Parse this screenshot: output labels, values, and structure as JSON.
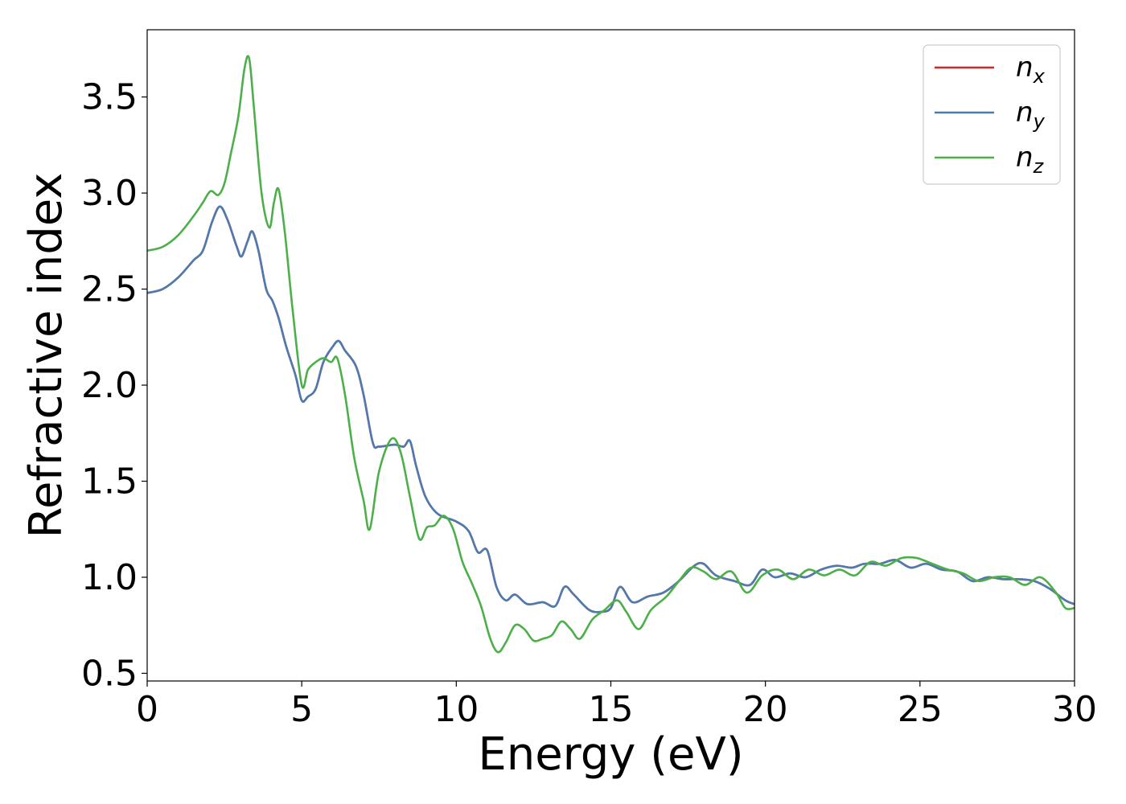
{
  "chart_data": {
    "type": "line",
    "xlabel": "Energy (eV)",
    "ylabel": "Refractive index",
    "xlim": [
      0,
      30
    ],
    "ylim": [
      0.46,
      3.85
    ],
    "xticks": [
      0,
      5,
      10,
      15,
      20,
      25,
      30
    ],
    "xtick_labels": [
      "0",
      "5",
      "10",
      "15",
      "20",
      "25",
      "30"
    ],
    "yticks": [
      0.5,
      1.0,
      1.5,
      2.0,
      2.5,
      3.0,
      3.5
    ],
    "ytick_labels": [
      "0.5",
      "1.0",
      "1.5",
      "2.0",
      "2.5",
      "3.0",
      "3.5"
    ],
    "grid": false,
    "legend_position": "top-right",
    "series": [
      {
        "name": "n",
        "subscript": "x",
        "color": "#d62728",
        "x": [
          0,
          0.5,
          1.0,
          1.5,
          1.8,
          2.1,
          2.35,
          2.6,
          2.9,
          3.05,
          3.25,
          3.4,
          3.6,
          3.85,
          4.05,
          4.25,
          4.5,
          4.8,
          5.0,
          5.2,
          5.45,
          5.7,
          6.0,
          6.2,
          6.4,
          6.75,
          7.0,
          7.3,
          7.5,
          8.0,
          8.3,
          8.5,
          8.7,
          9.0,
          9.4,
          10.0,
          10.4,
          10.7,
          11.0,
          11.3,
          11.6,
          11.9,
          12.3,
          12.8,
          13.2,
          13.5,
          13.8,
          14.3,
          14.7,
          15.0,
          15.3,
          15.7,
          16.2,
          16.7,
          17.2,
          17.7,
          18.0,
          18.4,
          19.0,
          19.5,
          19.9,
          20.3,
          20.8,
          21.3,
          21.8,
          22.3,
          22.8,
          23.2,
          23.7,
          24.2,
          24.7,
          25.2,
          25.7,
          26.2,
          26.7,
          27.2,
          27.7,
          28.2,
          28.7,
          29.2,
          29.7,
          30.0
        ],
        "y": [
          2.48,
          2.5,
          2.56,
          2.65,
          2.7,
          2.85,
          2.93,
          2.86,
          2.72,
          2.67,
          2.75,
          2.8,
          2.7,
          2.5,
          2.44,
          2.35,
          2.2,
          2.05,
          1.92,
          1.94,
          1.98,
          2.12,
          2.2,
          2.23,
          2.18,
          2.1,
          1.95,
          1.7,
          1.68,
          1.69,
          1.68,
          1.71,
          1.58,
          1.42,
          1.33,
          1.29,
          1.24,
          1.13,
          1.14,
          0.95,
          0.88,
          0.91,
          0.86,
          0.87,
          0.85,
          0.95,
          0.91,
          0.83,
          0.82,
          0.84,
          0.95,
          0.87,
          0.9,
          0.92,
          0.98,
          1.06,
          1.07,
          1.01,
          0.98,
          0.96,
          1.04,
          1.0,
          1.02,
          1.0,
          1.04,
          1.06,
          1.05,
          1.07,
          1.07,
          1.09,
          1.05,
          1.07,
          1.04,
          1.03,
          0.98,
          1.0,
          0.99,
          0.99,
          0.98,
          0.94,
          0.88,
          0.86
        ]
      },
      {
        "name": "n",
        "subscript": "y",
        "color": "#4c7bb0",
        "x": [
          0,
          0.5,
          1.0,
          1.5,
          1.8,
          2.1,
          2.35,
          2.6,
          2.9,
          3.05,
          3.25,
          3.4,
          3.6,
          3.85,
          4.05,
          4.25,
          4.5,
          4.8,
          5.0,
          5.2,
          5.45,
          5.7,
          6.0,
          6.2,
          6.4,
          6.75,
          7.0,
          7.3,
          7.5,
          8.0,
          8.3,
          8.5,
          8.7,
          9.0,
          9.4,
          10.0,
          10.4,
          10.7,
          11.0,
          11.3,
          11.6,
          11.9,
          12.3,
          12.8,
          13.2,
          13.5,
          13.8,
          14.3,
          14.7,
          15.0,
          15.3,
          15.7,
          16.2,
          16.7,
          17.2,
          17.7,
          18.0,
          18.4,
          19.0,
          19.5,
          19.9,
          20.3,
          20.8,
          21.3,
          21.8,
          22.3,
          22.8,
          23.2,
          23.7,
          24.2,
          24.7,
          25.2,
          25.7,
          26.2,
          26.7,
          27.2,
          27.7,
          28.2,
          28.7,
          29.2,
          29.7,
          30.0
        ],
        "y": [
          2.48,
          2.5,
          2.56,
          2.65,
          2.7,
          2.85,
          2.93,
          2.86,
          2.72,
          2.67,
          2.75,
          2.8,
          2.7,
          2.5,
          2.44,
          2.35,
          2.2,
          2.05,
          1.92,
          1.94,
          1.98,
          2.12,
          2.2,
          2.23,
          2.18,
          2.1,
          1.95,
          1.7,
          1.68,
          1.69,
          1.68,
          1.71,
          1.58,
          1.42,
          1.33,
          1.29,
          1.24,
          1.13,
          1.14,
          0.95,
          0.88,
          0.91,
          0.86,
          0.87,
          0.85,
          0.95,
          0.91,
          0.83,
          0.82,
          0.84,
          0.95,
          0.87,
          0.9,
          0.92,
          0.98,
          1.06,
          1.07,
          1.01,
          0.98,
          0.96,
          1.04,
          1.0,
          1.02,
          1.0,
          1.04,
          1.06,
          1.05,
          1.07,
          1.07,
          1.09,
          1.05,
          1.07,
          1.04,
          1.03,
          0.98,
          1.0,
          0.99,
          0.99,
          0.98,
          0.94,
          0.88,
          0.86
        ]
      },
      {
        "name": "n",
        "subscript": "z",
        "color": "#4daf4a",
        "x": [
          0,
          0.5,
          1.0,
          1.5,
          1.8,
          2.05,
          2.3,
          2.5,
          2.7,
          2.95,
          3.15,
          3.3,
          3.45,
          3.7,
          3.95,
          4.1,
          4.25,
          4.45,
          4.7,
          5.0,
          5.2,
          5.45,
          5.7,
          5.95,
          6.15,
          6.4,
          6.7,
          7.0,
          7.2,
          7.5,
          7.9,
          8.2,
          8.5,
          8.8,
          9.05,
          9.3,
          9.6,
          9.9,
          10.2,
          10.5,
          10.8,
          11.1,
          11.35,
          11.6,
          11.9,
          12.2,
          12.5,
          12.8,
          13.1,
          13.4,
          13.7,
          14.0,
          14.4,
          14.8,
          15.2,
          15.5,
          15.9,
          16.3,
          16.8,
          17.2,
          17.6,
          18.0,
          18.4,
          18.9,
          19.4,
          19.9,
          20.4,
          20.9,
          21.4,
          21.9,
          22.4,
          22.9,
          23.4,
          23.9,
          24.4,
          24.9,
          25.4,
          25.9,
          26.4,
          26.9,
          27.4,
          27.9,
          28.4,
          28.9,
          29.4,
          29.7,
          30.0
        ],
        "y": [
          2.7,
          2.72,
          2.78,
          2.88,
          2.95,
          3.01,
          2.99,
          3.05,
          3.2,
          3.4,
          3.65,
          3.7,
          3.45,
          3.0,
          2.82,
          2.95,
          3.02,
          2.8,
          2.4,
          2.0,
          2.08,
          2.12,
          2.14,
          2.12,
          2.14,
          1.95,
          1.62,
          1.4,
          1.25,
          1.55,
          1.72,
          1.65,
          1.42,
          1.2,
          1.26,
          1.27,
          1.32,
          1.25,
          1.08,
          0.97,
          0.85,
          0.68,
          0.61,
          0.66,
          0.75,
          0.73,
          0.67,
          0.68,
          0.7,
          0.77,
          0.73,
          0.68,
          0.78,
          0.83,
          0.88,
          0.82,
          0.73,
          0.83,
          0.9,
          0.98,
          1.05,
          1.03,
          0.99,
          1.03,
          0.92,
          1.01,
          1.04,
          0.99,
          1.04,
          1.01,
          1.04,
          1.01,
          1.08,
          1.06,
          1.1,
          1.1,
          1.07,
          1.04,
          1.02,
          0.98,
          1.0,
          1.0,
          0.96,
          1.0,
          0.92,
          0.84,
          0.84
        ]
      }
    ]
  }
}
